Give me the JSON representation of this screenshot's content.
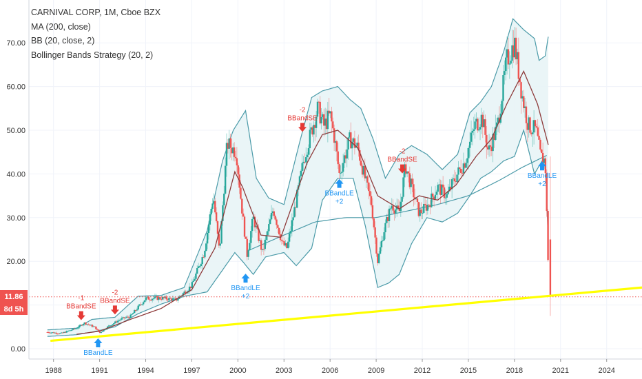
{
  "legend": {
    "title": "CARNIVAL CORP, 1M, Cboe BZX",
    "ma": "MA (200, close)",
    "bb": "BB (20, close, 2)",
    "strategy": "Bollinger Bands Strategy (20, 2)"
  },
  "price_tag": {
    "value": "11.86",
    "countdown": "8d 5h"
  },
  "colors": {
    "up": "#26a69a",
    "down": "#ef5350",
    "ma": "#8e3b3b",
    "bb": "#4a9aa8",
    "bbfill": "#e8f4f6",
    "trend": "#ffff00",
    "short": "#e53935",
    "long": "#2196f3"
  },
  "chart_data": {
    "type": "line",
    "title": "CARNIVAL CORP, 1M, Cboe BZX",
    "y_ticks": [
      "0.00",
      "10.00",
      "20.00",
      "30.00",
      "40.00",
      "50.00",
      "60.00",
      "70.00"
    ],
    "x_ticks": [
      "1988",
      "1991",
      "1994",
      "1997",
      "2000",
      "2003",
      "2006",
      "2009",
      "2012",
      "2015",
      "2018",
      "2021",
      "2024"
    ],
    "ylim": [
      -1,
      77
    ],
    "xlim": [
      1986.4,
      2026.3
    ],
    "grid": true,
    "price_path": [
      [
        1987.6,
        3.8
      ],
      [
        1988.5,
        3.5
      ],
      [
        1989.5,
        4.7
      ],
      [
        1990.0,
        5.9
      ],
      [
        1990.7,
        4.9
      ],
      [
        1991.0,
        3.6
      ],
      [
        1991.6,
        5.2
      ],
      [
        1992.4,
        6.8
      ],
      [
        1993.0,
        7.4
      ],
      [
        1994.0,
        11.5
      ],
      [
        1995.0,
        11.6
      ],
      [
        1996.0,
        11.2
      ],
      [
        1997.0,
        14.5
      ],
      [
        1997.8,
        22.0
      ],
      [
        1998.4,
        35.0
      ],
      [
        1998.8,
        22.0
      ],
      [
        1999.3,
        47.0
      ],
      [
        1999.9,
        45.0
      ],
      [
        2000.2,
        34.0
      ],
      [
        2000.6,
        21.5
      ],
      [
        2001.0,
        30.0
      ],
      [
        2001.6,
        22.0
      ],
      [
        2002.3,
        32.0
      ],
      [
        2002.9,
        24.0
      ],
      [
        2003.2,
        23.0
      ],
      [
        2003.8,
        34.0
      ],
      [
        2004.3,
        43.5
      ],
      [
        2004.8,
        50.0
      ],
      [
        2005.2,
        55.0
      ],
      [
        2005.6,
        51.0
      ],
      [
        2006.0,
        53.5
      ],
      [
        2006.3,
        48.0
      ],
      [
        2006.6,
        40.0
      ],
      [
        2007.3,
        48.0
      ],
      [
        2007.8,
        46.0
      ],
      [
        2008.2,
        40.0
      ],
      [
        2008.7,
        33.0
      ],
      [
        2009.1,
        20.0
      ],
      [
        2009.5,
        27.0
      ],
      [
        2010.0,
        33.0
      ],
      [
        2010.5,
        31.0
      ],
      [
        2010.9,
        42.0
      ],
      [
        2011.3,
        37.0
      ],
      [
        2011.8,
        31.0
      ],
      [
        2012.4,
        33.0
      ],
      [
        2013.0,
        37.0
      ],
      [
        2013.6,
        35.0
      ],
      [
        2014.2,
        39.5
      ],
      [
        2014.8,
        43.0
      ],
      [
        2015.4,
        51.0
      ],
      [
        2015.9,
        53.0
      ],
      [
        2016.3,
        45.0
      ],
      [
        2016.9,
        51.0
      ],
      [
        2017.5,
        66.0
      ],
      [
        2018.0,
        70.0
      ],
      [
        2018.5,
        58.0
      ],
      [
        2018.9,
        51.0
      ],
      [
        2019.4,
        50.0
      ],
      [
        2019.7,
        44.0
      ],
      [
        2020.0,
        43.0
      ],
      [
        2020.15,
        25.0
      ],
      [
        2020.25,
        11.86
      ]
    ],
    "ma200": [
      [
        1989.5,
        3.3
      ],
      [
        1991.0,
        4.0
      ],
      [
        1993.0,
        6.7
      ],
      [
        1995.0,
        9.2
      ],
      [
        1997.0,
        13.5
      ],
      [
        1998.5,
        23.0
      ],
      [
        1999.8,
        40.5
      ],
      [
        2000.3,
        37.0
      ],
      [
        2001.5,
        26.0
      ],
      [
        2002.8,
        25.5
      ],
      [
        2004.5,
        42.5
      ],
      [
        2005.5,
        49.0
      ],
      [
        2006.5,
        50.0
      ],
      [
        2007.8,
        46.0
      ],
      [
        2009.1,
        35.0
      ],
      [
        2010.5,
        32.0
      ],
      [
        2011.8,
        35.0
      ],
      [
        2013.0,
        34.0
      ],
      [
        2014.2,
        37.5
      ],
      [
        2015.5,
        44.0
      ],
      [
        2016.5,
        48.0
      ],
      [
        2017.5,
        56.0
      ],
      [
        2018.6,
        63.5
      ],
      [
        2019.5,
        56.0
      ],
      [
        2020.25,
        46.0
      ]
    ],
    "bb_upper": [
      [
        1987.6,
        4.3
      ],
      [
        1989.5,
        4.7
      ],
      [
        1990.5,
        6.7
      ],
      [
        1992.0,
        7.2
      ],
      [
        1993.5,
        12.0
      ],
      [
        1995.0,
        12.2
      ],
      [
        1996.5,
        14.0
      ],
      [
        1998.0,
        27.0
      ],
      [
        1999.0,
        43.0
      ],
      [
        1999.7,
        50.0
      ],
      [
        2000.5,
        54.5
      ],
      [
        2001.2,
        39.0
      ],
      [
        2002.0,
        34.5
      ],
      [
        2003.0,
        33.0
      ],
      [
        2004.0,
        47.0
      ],
      [
        2004.8,
        57.5
      ],
      [
        2005.5,
        59.0
      ],
      [
        2006.5,
        60.0
      ],
      [
        2007.3,
        57.0
      ],
      [
        2008.0,
        55.0
      ],
      [
        2008.8,
        48.0
      ],
      [
        2009.6,
        39.0
      ],
      [
        2010.5,
        44.5
      ],
      [
        2011.3,
        46.5
      ],
      [
        2012.3,
        44.5
      ],
      [
        2013.3,
        41.0
      ],
      [
        2014.3,
        44.5
      ],
      [
        2015.1,
        54.0
      ],
      [
        2015.8,
        56.5
      ],
      [
        2016.5,
        60.0
      ],
      [
        2017.3,
        68.0
      ],
      [
        2017.9,
        75.5
      ],
      [
        2018.6,
        73.0
      ],
      [
        2019.3,
        71.0
      ],
      [
        2019.6,
        66.0
      ],
      [
        2020.0,
        67.0
      ],
      [
        2020.25,
        72.5
      ]
    ],
    "bb_lower": [
      [
        1987.6,
        2.8
      ],
      [
        1989.5,
        3.2
      ],
      [
        1990.5,
        3.8
      ],
      [
        1992.0,
        5.0
      ],
      [
        1993.5,
        8.0
      ],
      [
        1995.0,
        10.2
      ],
      [
        1996.5,
        12.0
      ],
      [
        1998.0,
        13.0
      ],
      [
        1999.0,
        18.0
      ],
      [
        1999.8,
        22.0
      ],
      [
        2000.3,
        20.0
      ],
      [
        2001.0,
        17.0
      ],
      [
        2001.8,
        21.0
      ],
      [
        2003.0,
        22.0
      ],
      [
        2003.8,
        19.0
      ],
      [
        2004.8,
        23.0
      ],
      [
        2005.5,
        34.0
      ],
      [
        2006.5,
        39.0
      ],
      [
        2007.5,
        39.0
      ],
      [
        2008.3,
        28.0
      ],
      [
        2009.1,
        14.0
      ],
      [
        2009.8,
        15.0
      ],
      [
        2010.5,
        17.0
      ],
      [
        2011.3,
        24.0
      ],
      [
        2012.3,
        30.0
      ],
      [
        2013.3,
        29.0
      ],
      [
        2014.3,
        31.0
      ],
      [
        2015.1,
        35.0
      ],
      [
        2015.8,
        39.0
      ],
      [
        2016.5,
        40.5
      ],
      [
        2017.3,
        43.0
      ],
      [
        2018.0,
        44.0
      ],
      [
        2018.6,
        50.0
      ],
      [
        2019.3,
        40.0
      ],
      [
        2019.8,
        43.0
      ],
      [
        2020.0,
        43.5
      ],
      [
        2020.25,
        20.0
      ]
    ],
    "ma_long": [
      [
        2000.7,
        22.5
      ],
      [
        2003.0,
        26.0
      ],
      [
        2005.0,
        29.0
      ],
      [
        2007.0,
        30.0
      ],
      [
        2009.0,
        30.0
      ],
      [
        2011.0,
        31.5
      ],
      [
        2013.0,
        33.0
      ],
      [
        2015.0,
        35.0
      ],
      [
        2017.0,
        38.5
      ],
      [
        2018.5,
        41.5
      ],
      [
        2020.25,
        44.5
      ]
    ],
    "trendline": [
      [
        1987.8,
        1.8
      ],
      [
        2026.3,
        14.0
      ]
    ],
    "current_price": 11.86,
    "signals": [
      {
        "type": "short",
        "x": 1989.8,
        "y": 5.9,
        "label": "BBandSE",
        "qty": "-1"
      },
      {
        "type": "short",
        "x": 1992.0,
        "y": 7.2,
        "label": "BBandSE",
        "qty": "-2"
      },
      {
        "type": "long",
        "x": 1990.9,
        "y": 3.0,
        "label": "BBandLE",
        "qty": ""
      },
      {
        "type": "long",
        "x": 2000.5,
        "y": 17.8,
        "label": "BBandLE",
        "qty": "+2"
      },
      {
        "type": "short",
        "x": 2004.2,
        "y": 49.0,
        "label": "BBandSE",
        "qty": "-2"
      },
      {
        "type": "long",
        "x": 2006.6,
        "y": 39.5,
        "label": "BBandLE",
        "qty": "+2"
      },
      {
        "type": "short",
        "x": 2010.7,
        "y": 39.5,
        "label": "BBandSE",
        "qty": "-2"
      },
      {
        "type": "long",
        "x": 2019.8,
        "y": 43.5,
        "label": "BBandLE",
        "qty": "+2"
      }
    ]
  }
}
